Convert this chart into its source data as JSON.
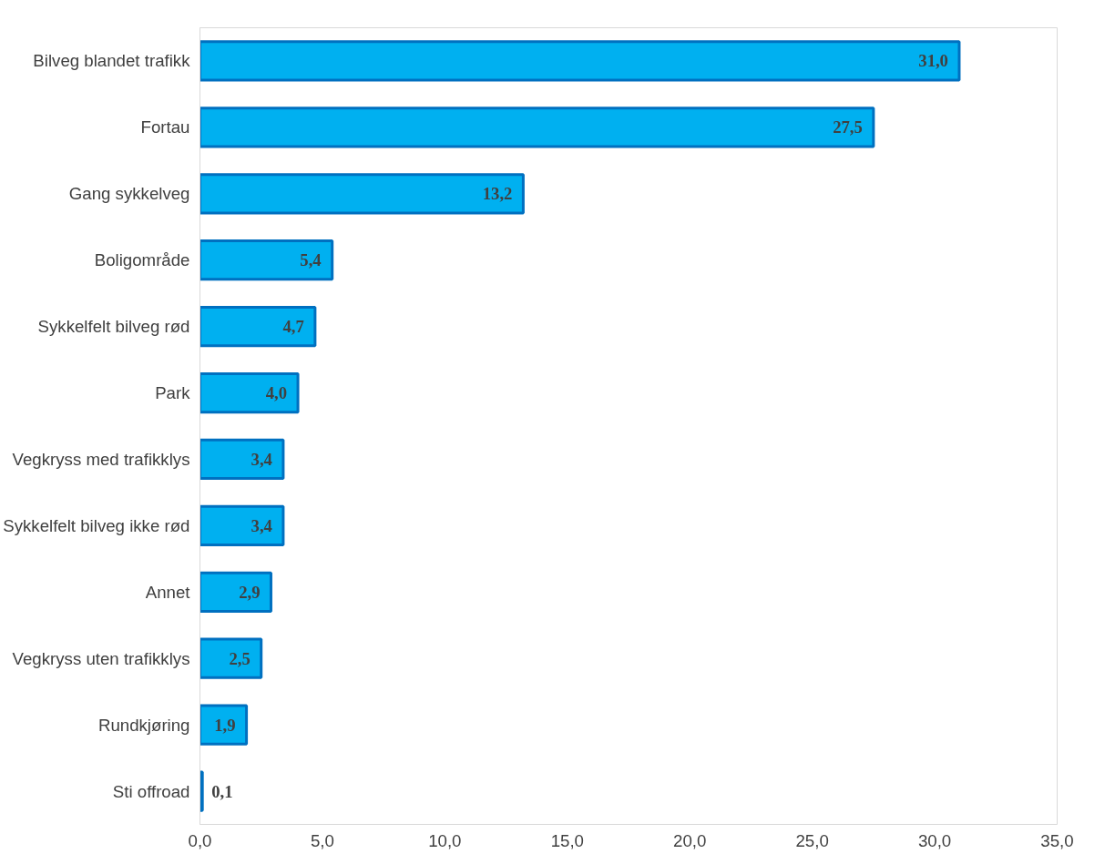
{
  "chart_data": {
    "type": "bar",
    "orientation": "horizontal",
    "categories": [
      "Bilveg blandet trafikk",
      "Fortau",
      "Gang sykkelveg",
      "Boligområde",
      "Sykkelfelt bilveg rød",
      "Park",
      "Vegkryss med trafikklys",
      "Sykkelfelt bilveg ikke rød",
      "Annet",
      "Vegkryss uten trafikklys",
      "Rundkjøring",
      "Sti offroad"
    ],
    "series": [
      {
        "color": "#00b0f0",
        "values": [
          31.0,
          27.5,
          13.2,
          5.4,
          4.7,
          4.0,
          3.4,
          3.4,
          2.9,
          2.5,
          1.9,
          0.1
        ],
        "value_labels": [
          "31,0",
          "27,5",
          "13,2",
          "5,4",
          "4,7",
          "4,0",
          "3,4",
          "3,4",
          "2,9",
          "2,5",
          "1,9",
          "0,1"
        ]
      }
    ],
    "xlim": [
      0,
      35
    ],
    "xticks": [
      {
        "value": 0,
        "label": "0,0"
      },
      {
        "value": 5,
        "label": "5,0"
      },
      {
        "value": 10,
        "label": "10,0"
      },
      {
        "value": 15,
        "label": "15,0"
      },
      {
        "value": 20,
        "label": "20,0"
      },
      {
        "value": 25,
        "label": "25,0"
      },
      {
        "value": 30,
        "label": "30,0"
      },
      {
        "value": 35,
        "label": "35,0"
      }
    ],
    "grid": false
  }
}
